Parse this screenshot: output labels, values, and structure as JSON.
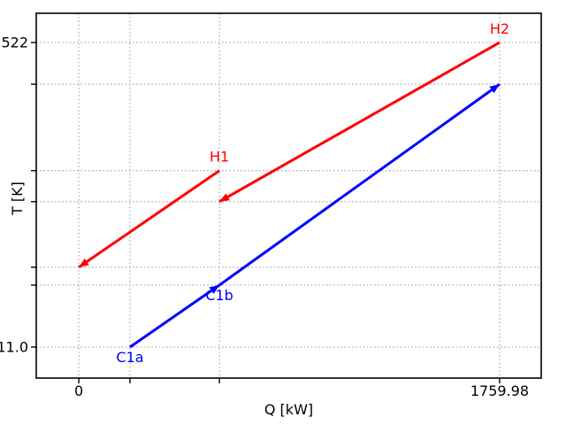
{
  "chart_data": {
    "type": "line",
    "title": "",
    "xlabel": "Q [kW]",
    "ylabel": "T [K]",
    "xlim": [
      -178,
      1934
    ],
    "ylim": [
      -41,
      571
    ],
    "grid": true,
    "grid_style": "dotted",
    "legend": "none",
    "x_ticks": [
      {
        "value": 0,
        "label": "0"
      },
      {
        "value": 214,
        "label": ""
      },
      {
        "value": 588,
        "label": ""
      },
      {
        "value": 1759.98,
        "label": "1759.98"
      }
    ],
    "y_ticks": [
      {
        "value": 522,
        "label": "522"
      },
      {
        "value": 452,
        "label": ""
      },
      {
        "value": 307,
        "label": ""
      },
      {
        "value": 255,
        "label": ""
      },
      {
        "value": 145,
        "label": ""
      },
      {
        "value": 115,
        "label": ""
      },
      {
        "value": 11,
        "label": "11.0"
      }
    ],
    "series": [
      {
        "name": "H1",
        "kind": "hot-stream",
        "color": "#ff0000",
        "points": [
          [
            0,
            145
          ],
          [
            588,
            307
          ]
        ],
        "arrow": "first",
        "label_at": "last",
        "label_side": "above"
      },
      {
        "name": "H2",
        "kind": "hot-stream",
        "color": "#ff0000",
        "points": [
          [
            588,
            255
          ],
          [
            1759.98,
            522
          ]
        ],
        "arrow": "first",
        "label_at": "last",
        "label_side": "above"
      },
      {
        "name": "C1a",
        "kind": "cold-stream",
        "color": "#0000ff",
        "points": [
          [
            214,
            11
          ],
          [
            588,
            115
          ]
        ],
        "arrow": "last",
        "label_at": "first",
        "label_side": "below"
      },
      {
        "name": "C1b",
        "kind": "cold-stream",
        "color": "#0000ff",
        "points": [
          [
            588,
            115
          ],
          [
            1759.98,
            452
          ]
        ],
        "arrow": "last",
        "label_at": "first",
        "label_side": "below"
      }
    ],
    "colors": {
      "hot": "#ff0000",
      "cold": "#0000ff",
      "grid": "#ababab",
      "axis": "#000000",
      "text": "#000000",
      "background": "#ffffff"
    }
  }
}
